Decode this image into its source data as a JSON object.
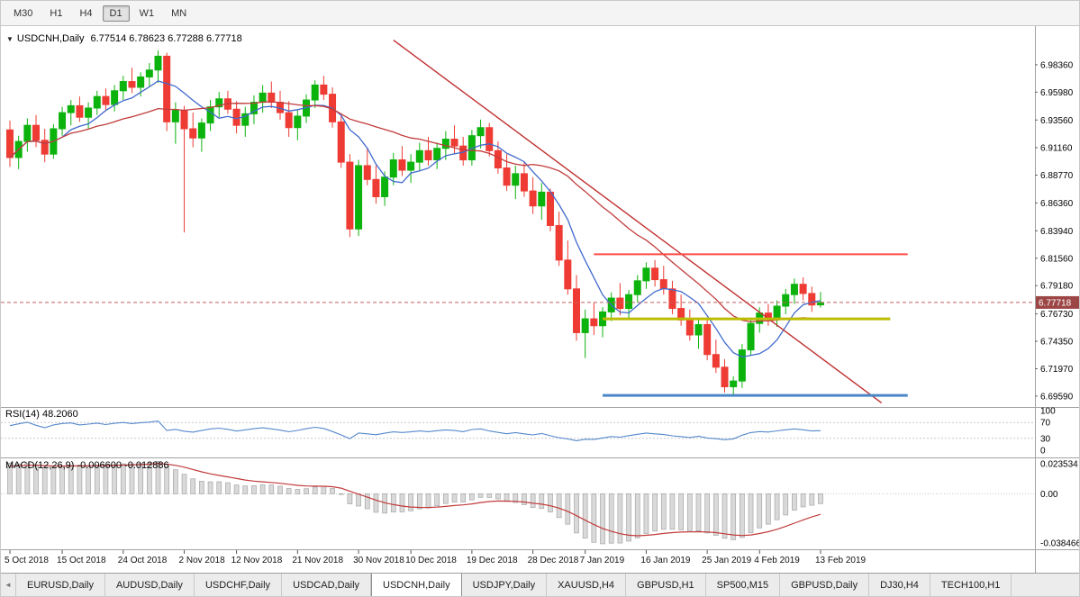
{
  "icons": {
    "chart_dropdown": "▼",
    "tab_scroll_left": "◄"
  },
  "toolbar": {
    "timeframes": [
      {
        "label": "M30",
        "active": false
      },
      {
        "label": "H1",
        "active": false
      },
      {
        "label": "H4",
        "active": false
      },
      {
        "label": "D1",
        "active": true
      },
      {
        "label": "W1",
        "active": false
      },
      {
        "label": "MN",
        "active": false
      }
    ]
  },
  "chart": {
    "title": "USDCNH,Daily",
    "ohlc_text": "6.77514 6.78623 6.77288 6.77718",
    "open": "6.77514",
    "high": "6.78623",
    "low": "6.77288",
    "close": "6.77718",
    "current_price": "6.77718"
  },
  "indicators": {
    "rsi": {
      "label": "RSI(14) 48.2060",
      "value": 48.206,
      "period": 14,
      "scale_labels": [
        "100",
        "70",
        "30",
        "0"
      ],
      "level_lines": [
        70,
        30
      ]
    },
    "macd": {
      "label": "MACD(12,26,9) -0.006600 -0.012886",
      "main_value": -0.0066,
      "signal_value": -0.012886,
      "scale_labels": [
        "0.023534",
        "0.00",
        "-0.038466"
      ],
      "scale_values": [
        0.023534,
        0,
        -0.038466
      ]
    }
  },
  "chart_data": {
    "type": "candlestick",
    "title": "USDCNH,Daily",
    "colors": {
      "up": "#0cb30c",
      "down": "#ee3b33",
      "ma_fast": "#4169cd",
      "ma_slow": "#c23b3b",
      "trendline": "#c03030",
      "hline_red": "#ff4a45",
      "hline_yellow": "#bcbc00",
      "hline_blue": "#4a86c8",
      "rsi_line": "#5588cc",
      "macd_hist_fill": "#d9d9d9",
      "macd_hist_stroke": "#a6a6a6",
      "macd_signal": "#c23b3b",
      "price_line": "#c06060",
      "price_badge": "#9c4646"
    },
    "price_axis": {
      "min": 6.688,
      "max": 7.014,
      "ticks": [
        "6.98360",
        "6.95980",
        "6.93560",
        "6.91160",
        "6.88770",
        "6.86360",
        "6.83940",
        "6.81560",
        "6.79180",
        "6.76730",
        "6.74350",
        "6.71970",
        "6.69590"
      ]
    },
    "time_axis": [
      {
        "i": 0,
        "label": "5 Oct 2018"
      },
      {
        "i": 6,
        "label": "15 Oct 2018"
      },
      {
        "i": 13,
        "label": "24 Oct 2018"
      },
      {
        "i": 20,
        "label": "2 Nov 2018"
      },
      {
        "i": 26,
        "label": "12 Nov 2018"
      },
      {
        "i": 33,
        "label": "21 Nov 2018"
      },
      {
        "i": 40,
        "label": "30 Nov 2018"
      },
      {
        "i": 46,
        "label": "10 Dec 2018"
      },
      {
        "i": 53,
        "label": "19 Dec 2018"
      },
      {
        "i": 60,
        "label": "28 Dec 2018"
      },
      {
        "i": 66,
        "label": "7 Jan 2019"
      },
      {
        "i": 73,
        "label": "16 Jan 2019"
      },
      {
        "i": 80,
        "label": "25 Jan 2019"
      },
      {
        "i": 86,
        "label": "4 Feb 2019"
      },
      {
        "i": 93,
        "label": "13 Feb 2019"
      }
    ],
    "candles": [
      [
        6.927,
        6.935,
        6.895,
        6.903
      ],
      [
        6.903,
        6.922,
        6.893,
        6.917
      ],
      [
        6.917,
        6.937,
        6.908,
        6.931
      ],
      [
        6.931,
        6.94,
        6.912,
        6.918
      ],
      [
        6.918,
        6.928,
        6.899,
        6.906
      ],
      [
        6.906,
        6.932,
        6.902,
        6.928
      ],
      [
        6.928,
        6.947,
        6.922,
        6.942
      ],
      [
        6.942,
        6.953,
        6.931,
        6.948
      ],
      [
        6.948,
        6.956,
        6.934,
        6.938
      ],
      [
        6.938,
        6.951,
        6.928,
        6.946
      ],
      [
        6.946,
        6.961,
        6.94,
        6.956
      ],
      [
        6.956,
        6.963,
        6.944,
        6.949
      ],
      [
        6.949,
        6.966,
        6.943,
        6.961
      ],
      [
        6.961,
        6.974,
        6.953,
        6.969
      ],
      [
        6.969,
        6.981,
        6.959,
        6.964
      ],
      [
        6.964,
        6.977,
        6.956,
        6.973
      ],
      [
        6.973,
        6.985,
        6.965,
        6.979
      ],
      [
        6.979,
        6.996,
        6.968,
        6.991
      ],
      [
        6.991,
        6.994,
        6.926,
        6.934
      ],
      [
        6.934,
        6.951,
        6.915,
        6.944
      ],
      [
        6.944,
        6.948,
        6.838,
        6.928
      ],
      [
        6.928,
        6.942,
        6.912,
        6.92
      ],
      [
        6.92,
        6.937,
        6.908,
        6.933
      ],
      [
        6.933,
        6.953,
        6.926,
        6.947
      ],
      [
        6.947,
        6.96,
        6.938,
        6.954
      ],
      [
        6.954,
        6.961,
        6.941,
        6.945
      ],
      [
        6.945,
        6.952,
        6.924,
        6.931
      ],
      [
        6.931,
        6.947,
        6.921,
        6.941
      ],
      [
        6.941,
        6.957,
        6.932,
        6.951
      ],
      [
        6.951,
        6.966,
        6.942,
        6.959
      ],
      [
        6.959,
        6.969,
        6.946,
        6.951
      ],
      [
        6.951,
        6.961,
        6.936,
        6.942
      ],
      [
        6.942,
        6.952,
        6.921,
        6.929
      ],
      [
        6.929,
        6.944,
        6.918,
        6.939
      ],
      [
        6.939,
        6.958,
        6.933,
        6.953
      ],
      [
        6.953,
        6.97,
        6.946,
        6.966
      ],
      [
        6.966,
        6.974,
        6.953,
        6.958
      ],
      [
        6.958,
        6.964,
        6.929,
        6.934
      ],
      [
        6.934,
        6.941,
        6.894,
        6.899
      ],
      [
        6.899,
        6.906,
        6.834,
        6.841
      ],
      [
        6.841,
        6.901,
        6.835,
        6.896
      ],
      [
        6.896,
        6.911,
        6.879,
        6.884
      ],
      [
        6.884,
        6.896,
        6.863,
        6.869
      ],
      [
        6.869,
        6.891,
        6.861,
        6.886
      ],
      [
        6.886,
        6.907,
        6.879,
        6.901
      ],
      [
        6.901,
        6.913,
        6.887,
        6.892
      ],
      [
        6.892,
        6.906,
        6.881,
        6.899
      ],
      [
        6.899,
        6.916,
        6.891,
        6.909
      ],
      [
        6.909,
        6.921,
        6.896,
        6.901
      ],
      [
        6.901,
        6.916,
        6.893,
        6.911
      ],
      [
        6.911,
        6.926,
        6.901,
        6.919
      ],
      [
        6.919,
        6.931,
        6.906,
        6.913
      ],
      [
        6.913,
        6.921,
        6.896,
        6.901
      ],
      [
        6.901,
        6.927,
        6.896,
        6.922
      ],
      [
        6.922,
        6.936,
        6.911,
        6.929
      ],
      [
        6.929,
        6.933,
        6.904,
        6.909
      ],
      [
        6.909,
        6.917,
        6.889,
        6.894
      ],
      [
        6.894,
        6.906,
        6.874,
        6.879
      ],
      [
        6.879,
        6.896,
        6.867,
        6.889
      ],
      [
        6.889,
        6.899,
        6.869,
        6.874
      ],
      [
        6.874,
        6.886,
        6.854,
        6.861
      ],
      [
        6.861,
        6.881,
        6.849,
        6.873
      ],
      [
        6.873,
        6.876,
        6.839,
        6.844
      ],
      [
        6.844,
        6.856,
        6.809,
        6.814
      ],
      [
        6.814,
        6.831,
        6.784,
        6.789
      ],
      [
        6.789,
        6.801,
        6.744,
        6.751
      ],
      [
        6.751,
        6.771,
        6.729,
        6.763
      ],
      [
        6.763,
        6.777,
        6.749,
        6.757
      ],
      [
        6.757,
        6.773,
        6.747,
        6.769
      ],
      [
        6.769,
        6.786,
        6.761,
        6.781
      ],
      [
        6.781,
        6.794,
        6.766,
        6.772
      ],
      [
        6.772,
        6.788,
        6.763,
        6.784
      ],
      [
        6.784,
        6.801,
        6.777,
        6.796
      ],
      [
        6.796,
        6.812,
        6.789,
        6.807
      ],
      [
        6.807,
        6.814,
        6.791,
        6.797
      ],
      [
        6.797,
        6.809,
        6.784,
        6.789
      ],
      [
        6.789,
        6.796,
        6.767,
        6.772
      ],
      [
        6.772,
        6.784,
        6.757,
        6.762
      ],
      [
        6.762,
        6.771,
        6.744,
        6.749
      ],
      [
        6.749,
        6.764,
        6.737,
        6.758
      ],
      [
        6.758,
        6.762,
        6.727,
        6.732
      ],
      [
        6.732,
        6.745,
        6.716,
        6.721
      ],
      [
        6.721,
        6.728,
        6.699,
        6.704
      ],
      [
        6.704,
        6.713,
        6.697,
        6.709
      ],
      [
        6.709,
        6.741,
        6.703,
        6.736
      ],
      [
        6.736,
        6.764,
        6.731,
        6.759
      ],
      [
        6.759,
        6.773,
        6.751,
        6.768
      ],
      [
        6.768,
        6.776,
        6.757,
        6.763
      ],
      [
        6.763,
        6.779,
        6.756,
        6.774
      ],
      [
        6.774,
        6.789,
        6.767,
        6.784
      ],
      [
        6.784,
        6.798,
        6.776,
        6.793
      ],
      [
        6.793,
        6.799,
        6.779,
        6.785
      ],
      [
        6.785,
        6.791,
        6.769,
        6.775
      ],
      [
        6.77514,
        6.78623,
        6.77288,
        6.77718
      ]
    ],
    "overlays": {
      "ma_fast_period": 7,
      "ma_slow_period": 21,
      "trendline": {
        "from_index": 44,
        "from_price": 7.005,
        "to_index": 100,
        "to_price": 6.69
      },
      "hlines": [
        {
          "name": "resistance-hline-red",
          "price": 6.819,
          "from_index": 67,
          "to_index": 103,
          "width": 2,
          "color_key": "hline_red"
        },
        {
          "name": "support-hline-yellow",
          "price": 6.763,
          "from_index": 68,
          "to_index": 101,
          "width": 3,
          "color_key": "hline_yellow"
        },
        {
          "name": "support-hline-blue",
          "price": 6.6965,
          "from_index": 68,
          "to_index": 103,
          "width": 3,
          "color_key": "hline_blue"
        }
      ]
    }
  },
  "tabs": [
    {
      "label": "EURUSD,Daily",
      "active": false
    },
    {
      "label": "AUDUSD,Daily",
      "active": false
    },
    {
      "label": "USDCHF,Daily",
      "active": false
    },
    {
      "label": "USDCAD,Daily",
      "active": false
    },
    {
      "label": "USDCNH,Daily",
      "active": true
    },
    {
      "label": "USDJPY,Daily",
      "active": false
    },
    {
      "label": "XAUUSD,H4",
      "active": false
    },
    {
      "label": "GBPUSD,H1",
      "active": false
    },
    {
      "label": "SP500,M15",
      "active": false
    },
    {
      "label": "GBPUSD,Daily",
      "active": false
    },
    {
      "label": "DJ30,H4",
      "active": false
    },
    {
      "label": "TECH100,H1",
      "active": false
    }
  ]
}
